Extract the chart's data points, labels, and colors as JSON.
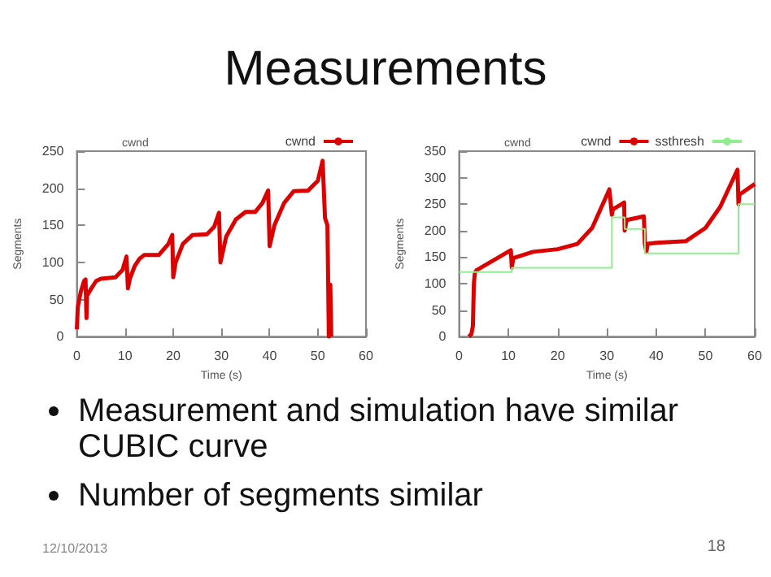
{
  "chart_data": [
    {
      "type": "line",
      "title": "cwnd",
      "xlabel": "Time (s)",
      "ylabel": "Segments",
      "xlim": [
        0,
        60
      ],
      "ylim": [
        0,
        250
      ],
      "xticks": [
        0,
        10,
        20,
        30,
        40,
        50,
        60
      ],
      "yticks": [
        0,
        50,
        100,
        150,
        200,
        250
      ],
      "grid": false,
      "legend": "top right",
      "series": [
        {
          "name": "cwnd",
          "color": "#dd0000",
          "x": [
            0,
            0.2,
            0.8,
            1.5,
            1.8,
            2,
            2.1,
            3,
            4,
            5,
            8,
            9.5,
            10.3,
            10.6,
            11,
            12,
            13,
            14,
            17,
            19,
            19.8,
            20,
            20.5,
            22,
            24,
            27,
            28.5,
            29.5,
            29.8,
            31,
            33,
            35,
            37,
            38.5,
            39.7,
            40,
            41,
            43,
            45,
            48,
            50,
            51,
            51.5,
            52,
            52.3,
            52.6,
            52.8
          ],
          "values": [
            10,
            40,
            60,
            75,
            77,
            25,
            55,
            65,
            75,
            78,
            80,
            90,
            108,
            65,
            78,
            95,
            105,
            110,
            110,
            125,
            137,
            80,
            100,
            125,
            137,
            138,
            148,
            167,
            100,
            135,
            158,
            168,
            168,
            180,
            197,
            122,
            150,
            180,
            196,
            197,
            210,
            237,
            160,
            150,
            0,
            70,
            0
          ]
        }
      ]
    },
    {
      "type": "line",
      "title": "cwnd",
      "xlabel": "Time (s)",
      "ylabel": "Segments",
      "xlim": [
        0,
        60
      ],
      "ylim": [
        0,
        350
      ],
      "xticks": [
        0,
        10,
        20,
        30,
        40,
        50,
        60
      ],
      "yticks": [
        0,
        50,
        100,
        150,
        200,
        250,
        300,
        350
      ],
      "grid": false,
      "legend": "top right",
      "series": [
        {
          "name": "cwnd",
          "color": "#dd0000",
          "x": [
            2,
            2.5,
            2.8,
            3,
            3.2,
            3.5,
            10.5,
            10.7,
            11,
            15,
            20,
            24,
            27,
            30.5,
            31,
            31.2,
            33.5,
            33.6,
            34,
            37.5,
            37.7,
            38,
            38.3,
            40,
            46,
            50,
            53,
            56.5,
            56.7,
            56.9,
            60
          ],
          "values": [
            0,
            5,
            20,
            100,
            120,
            125,
            163,
            130,
            148,
            160,
            165,
            175,
            205,
            278,
            230,
            240,
            253,
            200,
            220,
            227,
            175,
            160,
            175,
            177,
            180,
            205,
            245,
            315,
            250,
            268,
            288
          ]
        },
        {
          "name": "ssthresh",
          "type": "step",
          "color": "#90ee90",
          "x": [
            0,
            10.7,
            31,
            33.6,
            37.7,
            56.7,
            60
          ],
          "values": [
            122,
            130,
            225,
            203,
            157,
            250,
            250
          ]
        }
      ]
    },
    {
      "type": "other",
      "title": "Measurements",
      "annotations": [
        "Measurement and simulation have similar CUBIC curve",
        "Number of segments similar",
        "12/10/2013",
        "18"
      ]
    }
  ]
}
